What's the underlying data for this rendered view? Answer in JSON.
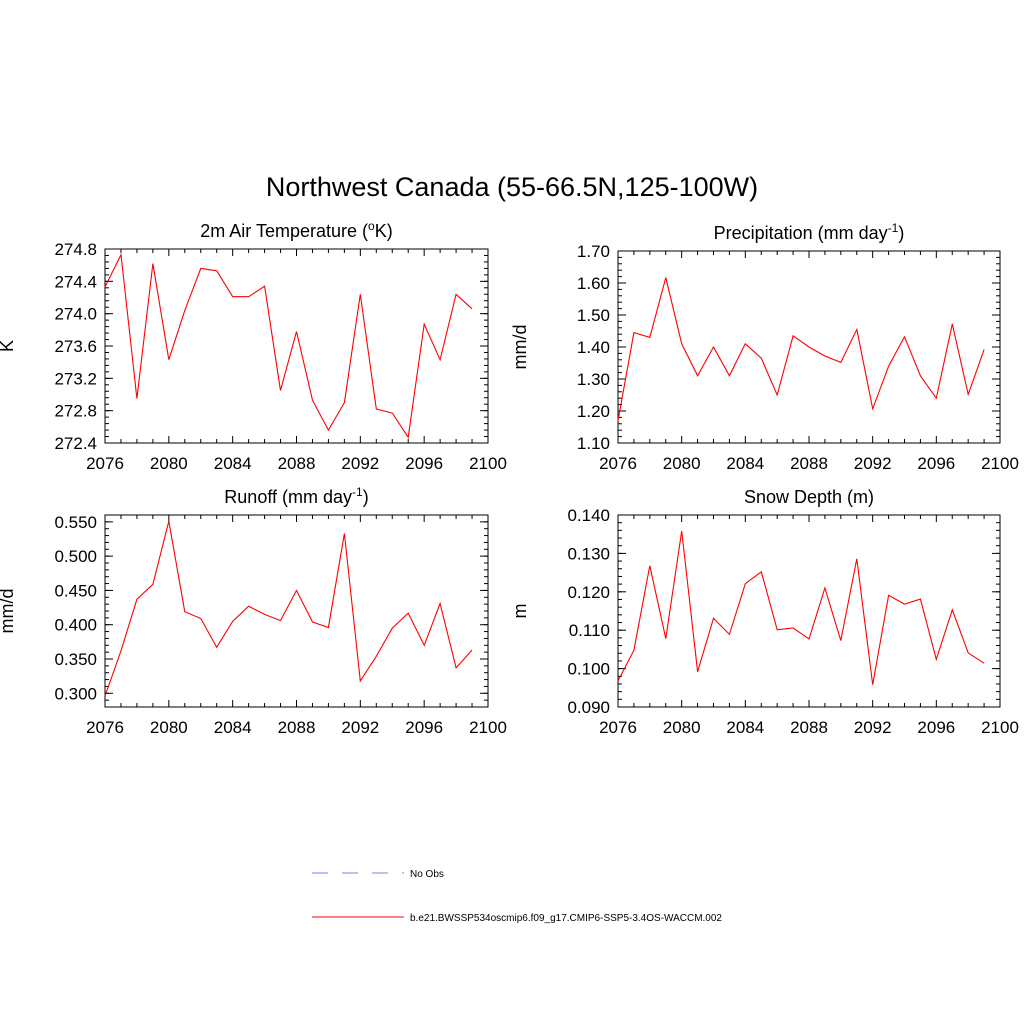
{
  "title": "Northwest Canada (55-66.5N,125-100W)",
  "legend": {
    "obs_label": "No Obs",
    "model_label": "b.e21.BWSSP534oscmip6.f09_g17.CMIP6-SSP5-3.4OS-WACCM.002",
    "obs_color": "#9999dd",
    "model_color": "#ff0000"
  },
  "chart_data": [
    {
      "type": "line",
      "title": "2m Air Temperature (",
      "title_sup": "o",
      "title_after": "K)",
      "title_sup2": "",
      "title_after2": "",
      "ylabel": "K",
      "xlabel": "",
      "xlim": [
        2076,
        2100
      ],
      "ylim": [
        272.4,
        274.8
      ],
      "xticks": [
        "2076",
        "2080",
        "2084",
        "2088",
        "2092",
        "2096",
        "2100"
      ],
      "yticks": [
        "272.4",
        "272.8",
        "273.2",
        "273.6",
        "274.0",
        "274.4",
        "274.8"
      ],
      "x": [
        2076,
        2077,
        2078,
        2079,
        2080,
        2081,
        2082,
        2083,
        2084,
        2085,
        2086,
        2087,
        2088,
        2089,
        2090,
        2091,
        2092,
        2093,
        2094,
        2095,
        2096,
        2097,
        2098,
        2099
      ],
      "values": [
        274.33,
        274.73,
        272.95,
        274.62,
        273.43,
        274.04,
        274.56,
        274.53,
        274.21,
        274.21,
        274.34,
        273.05,
        273.78,
        272.93,
        272.56,
        272.9,
        274.24,
        272.82,
        272.77,
        272.47,
        273.87,
        273.43,
        274.24,
        274.06
      ],
      "color": "#ff0000"
    },
    {
      "type": "line",
      "title": "Precipitation (mm day",
      "title_sup": "-1",
      "title_after": ")",
      "ylabel": "mm/d",
      "xlabel": "",
      "xlim": [
        2076,
        2100
      ],
      "ylim": [
        1.1,
        1.7
      ],
      "xticks": [
        "2076",
        "2080",
        "2084",
        "2088",
        "2092",
        "2096",
        "2100"
      ],
      "yticks": [
        "1.10",
        "1.20",
        "1.30",
        "1.40",
        "1.50",
        "1.60",
        "1.70"
      ],
      "x": [
        2076,
        2077,
        2078,
        2079,
        2080,
        2081,
        2082,
        2083,
        2084,
        2085,
        2086,
        2087,
        2088,
        2089,
        2090,
        2091,
        2092,
        2093,
        2094,
        2095,
        2096,
        2097,
        2098,
        2099
      ],
      "values": [
        1.17,
        1.445,
        1.43,
        1.617,
        1.41,
        1.31,
        1.4,
        1.31,
        1.41,
        1.365,
        1.25,
        1.435,
        1.4,
        1.372,
        1.352,
        1.455,
        1.207,
        1.34,
        1.432,
        1.31,
        1.24,
        1.472,
        1.252,
        1.392
      ],
      "color": "#ff0000"
    },
    {
      "type": "line",
      "title": "Runoff (mm day",
      "title_sup": "-1",
      "title_after": ")",
      "ylabel": "mm/d",
      "xlabel": "",
      "xlim": [
        2076,
        2100
      ],
      "ylim": [
        0.28,
        0.56
      ],
      "xticks": [
        "2076",
        "2080",
        "2084",
        "2088",
        "2092",
        "2096",
        "2100"
      ],
      "yticks": [
        "0.300",
        "0.350",
        "0.400",
        "0.450",
        "0.500",
        "0.550"
      ],
      "ytick_values": [
        0.3,
        0.35,
        0.4,
        0.45,
        0.5,
        0.55
      ],
      "x": [
        2076,
        2077,
        2078,
        2079,
        2080,
        2081,
        2082,
        2083,
        2084,
        2085,
        2086,
        2087,
        2088,
        2089,
        2090,
        2091,
        2092,
        2093,
        2094,
        2095,
        2096,
        2097,
        2098,
        2099
      ],
      "values": [
        0.296,
        0.362,
        0.437,
        0.459,
        0.551,
        0.419,
        0.409,
        0.367,
        0.405,
        0.427,
        0.415,
        0.406,
        0.45,
        0.404,
        0.396,
        0.533,
        0.318,
        0.354,
        0.395,
        0.417,
        0.37,
        0.431,
        0.337,
        0.363
      ],
      "color": "#ff0000"
    },
    {
      "type": "line",
      "title": "Snow Depth (m)",
      "title_sup": "",
      "title_after": "",
      "ylabel": "m",
      "xlabel": "",
      "xlim": [
        2076,
        2100
      ],
      "ylim": [
        0.09,
        0.14
      ],
      "xticks": [
        "2076",
        "2080",
        "2084",
        "2088",
        "2092",
        "2096",
        "2100"
      ],
      "yticks": [
        "0.090",
        "0.100",
        "0.110",
        "0.120",
        "0.130",
        "0.140"
      ],
      "x": [
        2076,
        2077,
        2078,
        2079,
        2080,
        2081,
        2082,
        2083,
        2084,
        2085,
        2086,
        2087,
        2088,
        2089,
        2090,
        2091,
        2092,
        2093,
        2094,
        2095,
        2096,
        2097,
        2098,
        2099
      ],
      "values": [
        0.0968,
        0.1048,
        0.1268,
        0.1078,
        0.1358,
        0.0992,
        0.1131,
        0.1089,
        0.1221,
        0.1252,
        0.1101,
        0.1106,
        0.1077,
        0.121,
        0.1073,
        0.1286,
        0.0958,
        0.1191,
        0.1168,
        0.1181,
        0.1024,
        0.1153,
        0.1041,
        0.1014
      ],
      "color": "#ff0000"
    }
  ]
}
